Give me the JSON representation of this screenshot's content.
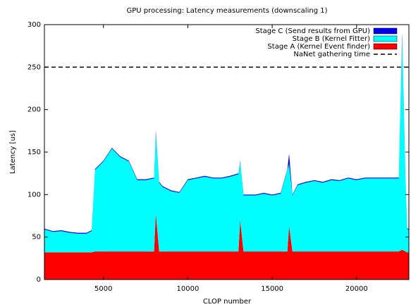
{
  "chart_data": {
    "type": "stacked_area",
    "title": "GPU processing: Latency measurements (downscaling 1)",
    "xlabel": "CLOP number",
    "ylabel": "Latency [us]",
    "x": [
      1500,
      2000,
      2500,
      3000,
      3500,
      4000,
      4300,
      4500,
      5000,
      5500,
      6000,
      6500,
      7000,
      7500,
      8000,
      8100,
      8300,
      8500,
      9000,
      9500,
      10000,
      10500,
      11000,
      11500,
      12000,
      12500,
      13000,
      13100,
      13300,
      14000,
      14500,
      15000,
      15500,
      15900,
      16000,
      16200,
      16500,
      17000,
      17500,
      18000,
      18500,
      19000,
      19500,
      20000,
      20500,
      21000,
      21500,
      22000,
      22500,
      22700,
      22900,
      23000,
      23100
    ],
    "series": [
      {
        "name": "Stage A (Kernel Event finder)",
        "color": "#ff0000",
        "values": [
          32,
          32,
          32,
          32,
          32,
          32,
          32,
          33,
          33,
          33,
          33,
          33,
          33,
          33,
          33,
          78,
          33,
          33,
          33,
          33,
          33,
          33,
          33,
          33,
          33,
          33,
          33,
          70,
          33,
          33,
          33,
          33,
          33,
          33,
          63,
          33,
          33,
          33,
          33,
          33,
          33,
          33,
          33,
          33,
          33,
          33,
          33,
          33,
          33,
          35,
          33,
          32,
          32
        ]
      },
      {
        "name": "Stage B (Kernel Fitter)",
        "color": "#00ffff",
        "values": [
          27,
          24,
          25,
          23,
          22,
          22,
          25,
          96,
          106,
          121,
          111,
          106,
          84,
          84,
          86,
          94,
          81,
          76,
          71,
          69,
          84,
          86,
          88,
          86,
          86,
          88,
          91,
          69,
          66,
          66,
          68,
          66,
          68,
          96,
          73,
          66,
          78,
          81,
          83,
          81,
          84,
          83,
          86,
          84,
          86,
          86,
          86,
          86,
          86,
          250,
          88,
          27,
          27
        ]
      },
      {
        "name": "Stage C (Send results from GPU)",
        "color": "#0000ee",
        "values": [
          1,
          1,
          1,
          1,
          1,
          1,
          1,
          1,
          1,
          1,
          1,
          1,
          1,
          1,
          1,
          3,
          1,
          1,
          1,
          1,
          1,
          1,
          1,
          1,
          1,
          1,
          1,
          1,
          1,
          1,
          1,
          1,
          1,
          1,
          12,
          1,
          1,
          1,
          1,
          1,
          1,
          1,
          1,
          1,
          1,
          1,
          1,
          1,
          1,
          5,
          1,
          1,
          1
        ]
      }
    ],
    "reference_lines": [
      {
        "name": "NaNet gathering time",
        "value": 250,
        "color": "#000000"
      }
    ],
    "xlim": [
      1500,
      23100
    ],
    "ylim": [
      0,
      300
    ],
    "xticks": [
      5000,
      10000,
      15000,
      20000
    ],
    "yticks": [
      0,
      50,
      100,
      150,
      200,
      250,
      300
    ],
    "legend": "upper right"
  }
}
